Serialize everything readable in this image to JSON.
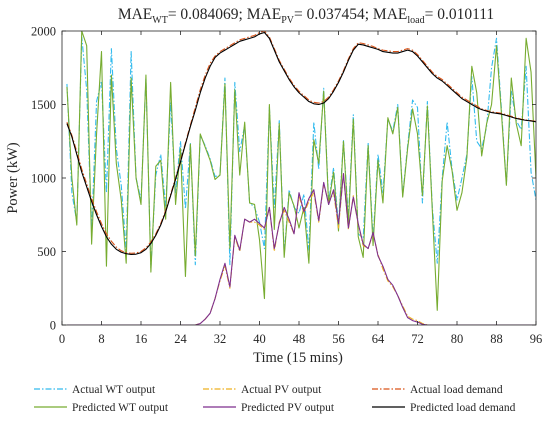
{
  "chart_data": {
    "type": "line",
    "title": {
      "parts": [
        {
          "text": "MAE",
          "sub": false
        },
        {
          "text": "WT",
          "sub": true
        },
        {
          "text": "= 0.084069; MAE",
          "sub": false
        },
        {
          "text": "PV",
          "sub": true
        },
        {
          "text": "= 0.037454; MAE",
          "sub": false
        },
        {
          "text": "load",
          "sub": true
        },
        {
          "text": "= 0.010111",
          "sub": false
        }
      ]
    },
    "xlabel": "Time (15 mins)",
    "ylabel": "Power (kW)",
    "xlim": [
      0,
      96
    ],
    "ylim": [
      0,
      2000
    ],
    "xticks": [
      0,
      8,
      16,
      24,
      32,
      40,
      48,
      56,
      64,
      72,
      80,
      88,
      96
    ],
    "yticks": [
      0,
      500,
      1000,
      1500,
      2000
    ],
    "grid": false,
    "legend_position": "bottom",
    "x": [
      1,
      2,
      3,
      4,
      5,
      6,
      7,
      8,
      9,
      10,
      11,
      12,
      13,
      14,
      15,
      16,
      17,
      18,
      19,
      20,
      21,
      22,
      23,
      24,
      25,
      26,
      27,
      28,
      29,
      30,
      31,
      32,
      33,
      34,
      35,
      36,
      37,
      38,
      39,
      40,
      41,
      42,
      43,
      44,
      45,
      46,
      47,
      48,
      49,
      50,
      51,
      52,
      53,
      54,
      55,
      56,
      57,
      58,
      59,
      60,
      61,
      62,
      63,
      64,
      65,
      66,
      67,
      68,
      69,
      70,
      71,
      72,
      73,
      74,
      75,
      76,
      77,
      78,
      79,
      80,
      81,
      82,
      83,
      84,
      85,
      86,
      87,
      88,
      89,
      90,
      91,
      92,
      93,
      94,
      95,
      96
    ],
    "series": [
      {
        "name": "Actual WT output",
        "color": "#33bbee",
        "dash": "dashdot",
        "values": [
          1640,
          900,
          700,
          1960,
          1600,
          650,
          1520,
          1660,
          900,
          1880,
          1200,
          950,
          510,
          1860,
          1000,
          850,
          1680,
          390,
          1020,
          1160,
          800,
          1510,
          900,
          1250,
          790,
          1240,
          410,
          1290,
          1220,
          1130,
          1010,
          1020,
          1680,
          410,
          1650,
          1180,
          1360,
          830,
          800,
          700,
          520,
          1480,
          800,
          1390,
          480,
          920,
          800,
          760,
          890,
          510,
          1380,
          1060,
          1610,
          840,
          1070,
          680,
          1260,
          730,
          1430,
          620,
          590,
          1240,
          580,
          1160,
          900,
          1400,
          1320,
          1500,
          880,
          1220,
          1530,
          1480,
          830,
          1520,
          800,
          420,
          1000,
          1380,
          1060,
          850,
          1000,
          1160,
          1690,
          1250,
          1200,
          1350,
          1750,
          1950,
          1470,
          960,
          1590,
          1390,
          1330,
          1760,
          1040,
          850
        ]
      },
      {
        "name": "Predicted WT output",
        "color": "#77ac30",
        "dash": "solid",
        "values": [
          1620,
          1000,
          680,
          2000,
          1900,
          550,
          1300,
          1860,
          400,
          1700,
          1100,
          850,
          420,
          1680,
          1000,
          820,
          1700,
          360,
          1080,
          1120,
          720,
          1650,
          820,
          1200,
          330,
          1230,
          470,
          1300,
          1210,
          1120,
          990,
          1020,
          1640,
          520,
          1600,
          1020,
          1380,
          830,
          820,
          580,
          180,
          1500,
          650,
          1370,
          460,
          900,
          810,
          660,
          800,
          420,
          1260,
          1100,
          1590,
          820,
          1040,
          640,
          1250,
          690,
          1400,
          600,
          460,
          1220,
          540,
          1120,
          830,
          1410,
          1300,
          1480,
          870,
          1200,
          1470,
          1300,
          880,
          1490,
          780,
          100,
          980,
          1220,
          1050,
          780,
          900,
          1140,
          1760,
          1580,
          1150,
          1370,
          1500,
          1900,
          1440,
          950,
          1680,
          1370,
          1220,
          1950,
          1720,
          1000
        ]
      },
      {
        "name": "Actual PV output",
        "color": "#edb120",
        "dash": "dashdot",
        "values": [
          0,
          0,
          0,
          0,
          0,
          0,
          0,
          0,
          0,
          0,
          0,
          0,
          0,
          0,
          0,
          0,
          0,
          0,
          0,
          0,
          0,
          0,
          0,
          0,
          0,
          0,
          0,
          10,
          40,
          80,
          180,
          300,
          400,
          250,
          600,
          500,
          720,
          700,
          700,
          680,
          650,
          800,
          500,
          700,
          780,
          700,
          620,
          880,
          760,
          840,
          900,
          700,
          960,
          830,
          900,
          660,
          1030,
          650,
          880,
          680,
          540,
          520,
          620,
          480,
          380,
          300,
          260,
          200,
          130,
          60,
          40,
          30,
          10,
          0,
          0,
          0,
          0,
          0,
          0,
          0,
          0,
          0,
          0,
          0,
          0,
          0,
          0,
          0,
          0,
          0,
          0,
          0,
          0,
          0,
          0,
          0
        ]
      },
      {
        "name": "Predicted PV output",
        "color": "#7e2f8e",
        "dash": "solid",
        "values": [
          0,
          0,
          0,
          0,
          0,
          0,
          0,
          0,
          0,
          0,
          0,
          0,
          0,
          0,
          0,
          0,
          0,
          0,
          0,
          0,
          0,
          0,
          0,
          0,
          0,
          0,
          0,
          10,
          40,
          80,
          180,
          310,
          420,
          260,
          610,
          510,
          720,
          700,
          720,
          690,
          660,
          800,
          520,
          690,
          800,
          720,
          620,
          900,
          770,
          860,
          920,
          710,
          970,
          820,
          920,
          690,
          1030,
          660,
          870,
          690,
          550,
          520,
          630,
          470,
          400,
          310,
          270,
          200,
          120,
          50,
          30,
          20,
          5,
          0,
          0,
          0,
          0,
          0,
          0,
          0,
          0,
          0,
          0,
          0,
          0,
          0,
          0,
          0,
          0,
          0,
          0,
          0,
          0,
          0,
          0,
          0
        ]
      },
      {
        "name": "Actual load demand",
        "color": "#d95319",
        "dash": "dashdot",
        "values": [
          1380,
          1290,
          1180,
          1060,
          960,
          860,
          770,
          690,
          620,
          570,
          530,
          505,
          492,
          488,
          490,
          500,
          525,
          565,
          620,
          690,
          780,
          890,
          1000,
          1120,
          1240,
          1360,
          1480,
          1600,
          1700,
          1780,
          1830,
          1860,
          1880,
          1900,
          1920,
          1940,
          1950,
          1960,
          1970,
          1990,
          2000,
          1960,
          1880,
          1800,
          1740,
          1680,
          1630,
          1590,
          1560,
          1530,
          1515,
          1510,
          1520,
          1550,
          1600,
          1660,
          1730,
          1810,
          1880,
          1920,
          1915,
          1905,
          1895,
          1880,
          1870,
          1865,
          1860,
          1860,
          1870,
          1880,
          1870,
          1840,
          1800,
          1760,
          1720,
          1690,
          1670,
          1640,
          1610,
          1580,
          1550,
          1530,
          1510,
          1490,
          1470,
          1460,
          1450,
          1445,
          1440,
          1430,
          1420,
          1410,
          1400,
          1395,
          1390,
          1385
        ]
      },
      {
        "name": "Predicted load demand",
        "color": "#000000",
        "dash": "solid",
        "values": [
          1370,
          1280,
          1160,
          1040,
          940,
          840,
          750,
          670,
          600,
          550,
          515,
          495,
          485,
          480,
          482,
          492,
          515,
          555,
          610,
          680,
          770,
          880,
          990,
          1110,
          1230,
          1350,
          1460,
          1580,
          1680,
          1760,
          1820,
          1850,
          1870,
          1890,
          1910,
          1930,
          1940,
          1950,
          1960,
          1980,
          1990,
          1950,
          1870,
          1790,
          1730,
          1670,
          1620,
          1580,
          1550,
          1520,
          1505,
          1500,
          1510,
          1540,
          1590,
          1650,
          1720,
          1800,
          1870,
          1910,
          1905,
          1895,
          1885,
          1875,
          1860,
          1855,
          1850,
          1850,
          1860,
          1870,
          1860,
          1830,
          1790,
          1750,
          1710,
          1680,
          1660,
          1630,
          1600,
          1570,
          1540,
          1520,
          1500,
          1480,
          1465,
          1455,
          1445,
          1440,
          1435,
          1425,
          1415,
          1405,
          1398,
          1392,
          1388,
          1382
        ]
      }
    ]
  }
}
